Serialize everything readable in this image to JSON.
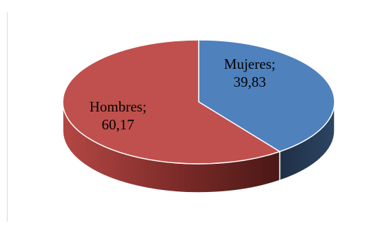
{
  "chart_data": {
    "type": "pie",
    "style": "3d",
    "title": "",
    "slices": [
      {
        "label": "Mujeres",
        "value": 39.83,
        "display": "39,83",
        "color": "#4f81bd"
      },
      {
        "label": "Hombres",
        "value": 60.17,
        "display": "60,17",
        "color": "#c0504d"
      }
    ],
    "data_labels": "category-and-value",
    "legend": "none"
  }
}
